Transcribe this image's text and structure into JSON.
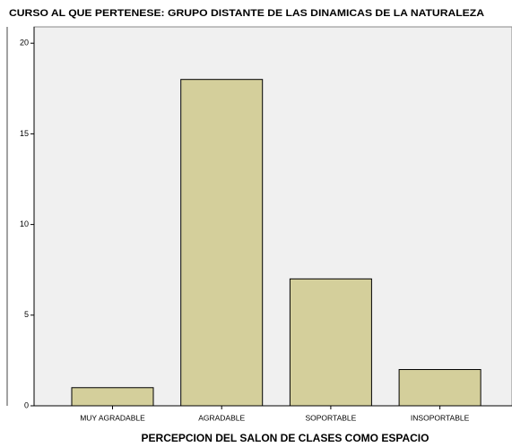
{
  "chart_data": {
    "type": "bar",
    "title": "CURSO AL QUE PERTENESE: GRUPO DISTANTE DE LAS DINAMICAS DE LA NATURALEZA",
    "x_label": "PERCEPCION DEL SALON DE CLASES COMO ESPACIO",
    "categories": [
      "MUY AGRADABLE",
      "AGRADABLE",
      "SOPORTABLE",
      "INSOPORTABLE"
    ],
    "values": [
      1,
      18,
      7,
      2
    ],
    "color": "#d4cf9b",
    "ylim": [
      0,
      20.9
    ],
    "yticks": [
      0,
      5,
      10,
      15,
      20
    ]
  }
}
